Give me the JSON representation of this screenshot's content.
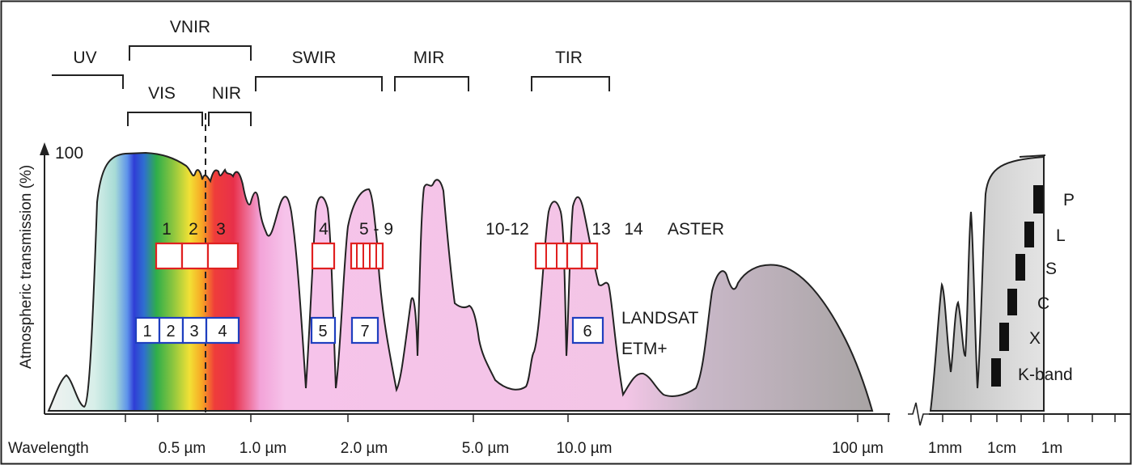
{
  "y_axis": {
    "label": "Atmospheric transmission (%)",
    "max_label": "100"
  },
  "x_axis": {
    "lead_label": "Wavelength",
    "ticks": [
      "0.5 µm",
      "1.0 µm",
      "2.0 µm",
      "5.0 µm",
      "10.0 µm",
      "100 µm",
      "1mm",
      "1cm",
      "1m"
    ]
  },
  "regions": {
    "uv": "UV",
    "vnir": "VNIR",
    "vis": "VIS",
    "nir": "NIR",
    "swir": "SWIR",
    "mir": "MIR",
    "tir": "TIR"
  },
  "aster": {
    "name": "ASTER",
    "band_labels": [
      "1",
      "2",
      "3",
      "4",
      "5 - 9",
      "10-12",
      "13",
      "14"
    ]
  },
  "landsat": {
    "name_line1": "LANDSAT",
    "name_line2": "ETM+",
    "bands": [
      "1",
      "2",
      "3",
      "4",
      "5",
      "7",
      "6"
    ]
  },
  "radar_bands": [
    "P",
    "L",
    "S",
    "C",
    "X",
    "K-band"
  ],
  "colors": {
    "aster_box": "#e02020",
    "landsat_box": "#1f3fbf",
    "atmospheric_window_ir": "#f5c0e8",
    "far_ir": "#bdb3b8",
    "microwave": "#d8d8d8"
  }
}
